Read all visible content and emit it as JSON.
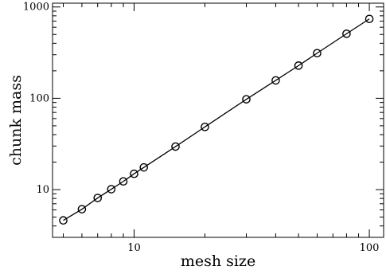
{
  "chart_data": {
    "type": "line",
    "title": "",
    "xlabel": "mesh size",
    "ylabel": "chunk mass",
    "x_scale": "log",
    "y_scale": "log",
    "xlim": [
      4.5,
      115
    ],
    "ylim": [
      3,
      1100
    ],
    "grid": false,
    "legend": "none",
    "x_ticks": [
      {
        "value": 10,
        "label": "10"
      },
      {
        "value": 100,
        "label": "100"
      }
    ],
    "y_ticks": [
      {
        "value": 10,
        "label": "10"
      },
      {
        "value": 100,
        "label": "100"
      },
      {
        "value": 1000,
        "label": "1000"
      }
    ],
    "marker": "open-circle",
    "line_color": "#000000",
    "series": [
      {
        "x": [
          5,
          6,
          7,
          8,
          9,
          10,
          11,
          15,
          20,
          30,
          40,
          50,
          60,
          80,
          100
        ],
        "y": [
          4.6,
          6.1,
          8.1,
          10.1,
          12.3,
          14.9,
          17.5,
          29.6,
          48.6,
          97.5,
          157,
          228,
          312,
          509,
          740
        ]
      }
    ]
  }
}
